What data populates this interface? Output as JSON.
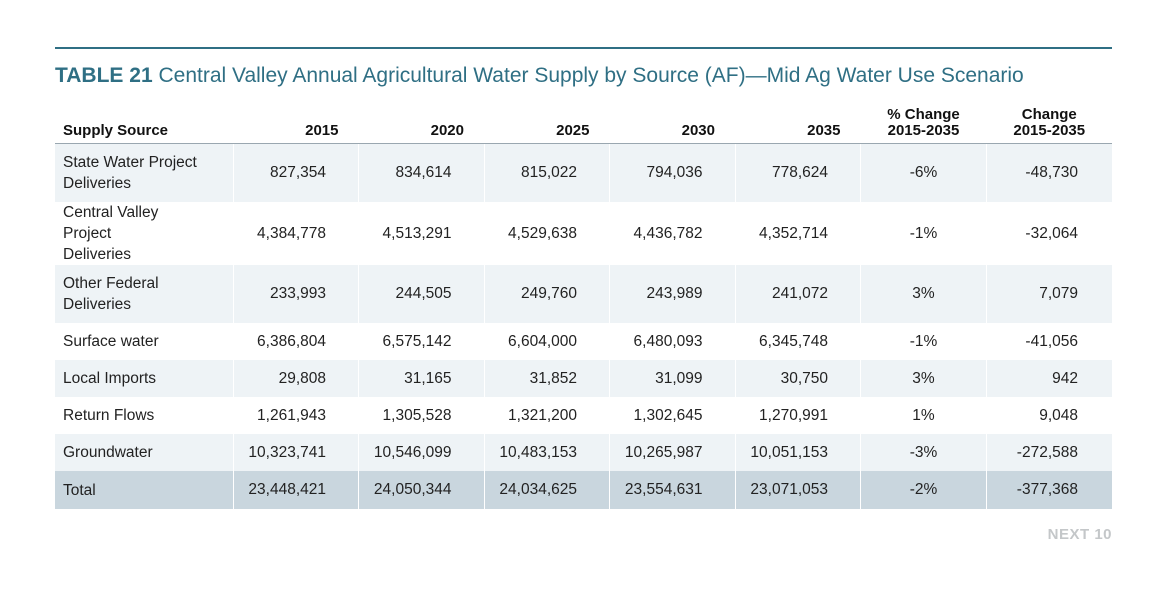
{
  "title": {
    "number": "TABLE 21",
    "text": "Central Valley Annual Agricultural Water Supply by Source (AF)—Mid Ag Water Use Scenario"
  },
  "table": {
    "headers": {
      "source": "Supply Source",
      "y2015": "2015",
      "y2020": "2020",
      "y2025": "2025",
      "y2030": "2030",
      "y2035": "2035",
      "pct_line1": "% Change",
      "pct_line2": "2015-2035",
      "chg_line1": "Change",
      "chg_line2": "2015-2035"
    },
    "rows": [
      {
        "source_line1": "State Water Project",
        "source_line2": "Deliveries",
        "y2015": "827,354",
        "y2020": "834,614",
        "y2025": "815,022",
        "y2030": "794,036",
        "y2035": "778,624",
        "pct": "-6%",
        "chg": "-48,730"
      },
      {
        "source_line1": "Central Valley Project",
        "source_line2": "Deliveries",
        "y2015": "4,384,778",
        "y2020": "4,513,291",
        "y2025": "4,529,638",
        "y2030": "4,436,782",
        "y2035": "4,352,714",
        "pct": "-1%",
        "chg": "-32,064"
      },
      {
        "source_line1": "Other Federal",
        "source_line2": "Deliveries",
        "y2015": "233,993",
        "y2020": "244,505",
        "y2025": "249,760",
        "y2030": "243,989",
        "y2035": "241,072",
        "pct": "3%",
        "chg": "7,079"
      },
      {
        "source": "Surface water",
        "y2015": "6,386,804",
        "y2020": "6,575,142",
        "y2025": "6,604,000",
        "y2030": "6,480,093",
        "y2035": "6,345,748",
        "pct": "-1%",
        "chg": "-41,056"
      },
      {
        "source": "Local Imports",
        "y2015": "29,808",
        "y2020": "31,165",
        "y2025": "31,852",
        "y2030": "31,099",
        "y2035": "30,750",
        "pct": "3%",
        "chg": "942"
      },
      {
        "source": "Return Flows",
        "y2015": "1,261,943",
        "y2020": "1,305,528",
        "y2025": "1,321,200",
        "y2030": "1,302,645",
        "y2035": "1,270,991",
        "pct": "1%",
        "chg": "9,048"
      },
      {
        "source": "Groundwater",
        "y2015": "10,323,741",
        "y2020": "10,546,099",
        "y2025": "10,483,153",
        "y2030": "10,265,987",
        "y2035": "10,051,153",
        "pct": "-3%",
        "chg": "-272,588"
      },
      {
        "source": "Total",
        "y2015": "23,448,421",
        "y2020": "24,050,344",
        "y2025": "24,034,625",
        "y2030": "23,554,631",
        "y2035": "23,071,053",
        "pct": "-2%",
        "chg": "-377,368"
      }
    ]
  },
  "footer": {
    "brand": "NEXT 10"
  },
  "colors": {
    "accent": "#2f6f84",
    "row_shade": "#eef3f6",
    "total_row": "#c9d6de",
    "footer_text": "#c4c7c9"
  }
}
